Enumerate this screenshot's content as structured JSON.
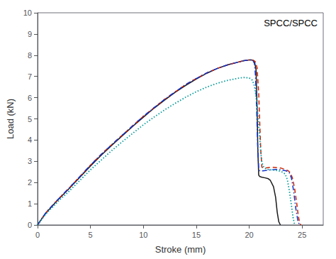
{
  "chart_data": {
    "type": "line",
    "xlabel": "Stroke (mm)",
    "ylabel": "Load (kN)",
    "xlim": [
      0,
      27
    ],
    "ylim": [
      0,
      10
    ],
    "xticks": [
      0,
      5,
      10,
      15,
      20,
      25
    ],
    "yticks": [
      0,
      1,
      2,
      3,
      4,
      5,
      6,
      7,
      8,
      9,
      10
    ],
    "grid": false,
    "annotation": "SPCC/SPCC",
    "series": [
      {
        "color": "#1a1a1a",
        "line_style": "solid",
        "x": [
          0.0,
          0.3,
          0.7,
          1.0,
          1.5,
          2.0,
          3.0,
          4.0,
          5.0,
          6.0,
          7.0,
          8.0,
          9.0,
          10.0,
          11.0,
          12.0,
          13.0,
          14.0,
          15.0,
          16.0,
          17.0,
          18.0,
          19.0,
          19.5,
          20.0,
          20.15,
          20.3,
          20.5,
          20.65,
          20.75,
          20.82,
          20.9,
          21.0,
          21.2,
          21.5,
          21.8,
          22.0,
          22.3,
          22.5,
          22.65,
          22.8,
          22.95
        ],
        "values": [
          0.0,
          0.22,
          0.5,
          0.68,
          0.95,
          1.22,
          1.72,
          2.25,
          2.78,
          3.28,
          3.75,
          4.2,
          4.65,
          5.08,
          5.5,
          5.88,
          6.25,
          6.58,
          6.88,
          7.15,
          7.38,
          7.55,
          7.68,
          7.74,
          7.78,
          7.78,
          7.77,
          7.72,
          7.3,
          5.5,
          3.5,
          2.35,
          2.28,
          2.25,
          2.22,
          2.18,
          2.1,
          1.8,
          1.3,
          0.6,
          0.15,
          0.0
        ]
      },
      {
        "color": "#cc2200",
        "line_style": "dashed",
        "x": [
          0.0,
          0.3,
          0.7,
          1.0,
          1.5,
          2.0,
          3.0,
          4.0,
          5.0,
          6.0,
          7.0,
          8.0,
          9.0,
          10.0,
          11.0,
          12.0,
          13.0,
          14.0,
          15.0,
          16.0,
          17.0,
          18.0,
          19.0,
          19.5,
          20.0,
          20.2,
          20.4,
          20.6,
          20.75,
          20.9,
          21.0,
          21.1,
          21.2,
          21.4,
          21.8,
          22.2,
          22.6,
          23.0,
          23.4,
          23.7,
          23.9,
          24.1,
          24.3,
          24.5,
          24.65,
          24.8,
          24.9
        ],
        "values": [
          0.0,
          0.23,
          0.52,
          0.7,
          0.97,
          1.24,
          1.75,
          2.28,
          2.82,
          3.32,
          3.78,
          4.23,
          4.68,
          5.12,
          5.52,
          5.92,
          6.27,
          6.62,
          6.9,
          7.17,
          7.38,
          7.55,
          7.68,
          7.74,
          7.78,
          7.78,
          7.76,
          7.68,
          7.4,
          6.2,
          4.8,
          3.5,
          2.72,
          2.68,
          2.7,
          2.72,
          2.7,
          2.68,
          2.62,
          2.55,
          2.45,
          2.2,
          1.7,
          1.0,
          0.4,
          0.05,
          0.0
        ]
      },
      {
        "color": "#1133cc",
        "line_style": "dashdot",
        "x": [
          0.0,
          0.3,
          0.7,
          1.0,
          1.5,
          2.0,
          3.0,
          4.0,
          5.0,
          6.0,
          7.0,
          8.0,
          9.0,
          10.0,
          11.0,
          12.0,
          13.0,
          14.0,
          15.0,
          16.0,
          17.0,
          18.0,
          19.0,
          19.5,
          20.0,
          20.2,
          20.35,
          20.5,
          20.6,
          20.7,
          20.8,
          20.9,
          21.0,
          21.3,
          21.7,
          22.1,
          22.5,
          23.0,
          23.5,
          23.8,
          24.0,
          24.2,
          24.4,
          24.6,
          24.75
        ],
        "values": [
          0.0,
          0.23,
          0.52,
          0.7,
          0.97,
          1.24,
          1.75,
          2.28,
          2.82,
          3.32,
          3.78,
          4.23,
          4.68,
          5.12,
          5.52,
          5.92,
          6.27,
          6.62,
          6.9,
          7.17,
          7.38,
          7.55,
          7.68,
          7.74,
          7.78,
          7.78,
          7.76,
          7.6,
          7.0,
          5.5,
          3.8,
          2.7,
          2.55,
          2.55,
          2.58,
          2.6,
          2.62,
          2.6,
          2.55,
          2.45,
          2.2,
          1.6,
          0.8,
          0.2,
          0.0
        ]
      },
      {
        "color": "#009999",
        "line_style": "dotted",
        "x": [
          0.0,
          0.3,
          0.7,
          1.0,
          1.5,
          2.0,
          3.0,
          4.0,
          5.0,
          6.0,
          7.0,
          8.0,
          9.0,
          10.0,
          11.0,
          12.0,
          13.0,
          14.0,
          15.0,
          16.0,
          17.0,
          18.0,
          19.0,
          19.5,
          20.0,
          20.3,
          20.5,
          20.7,
          20.85,
          21.0,
          21.1,
          21.2,
          21.4,
          21.7,
          22.0,
          22.4,
          22.8,
          23.1,
          23.4,
          23.6,
          23.8,
          24.0,
          24.15,
          24.3
        ],
        "values": [
          0.0,
          0.2,
          0.46,
          0.63,
          0.88,
          1.14,
          1.6,
          2.1,
          2.6,
          3.05,
          3.5,
          3.92,
          4.32,
          4.72,
          5.08,
          5.42,
          5.73,
          6.02,
          6.28,
          6.5,
          6.68,
          6.82,
          6.92,
          6.95,
          6.93,
          6.82,
          6.55,
          5.9,
          5.0,
          4.1,
          3.4,
          2.95,
          2.7,
          2.62,
          2.6,
          2.58,
          2.55,
          2.5,
          2.4,
          2.15,
          1.6,
          0.9,
          0.35,
          0.0
        ]
      }
    ]
  }
}
